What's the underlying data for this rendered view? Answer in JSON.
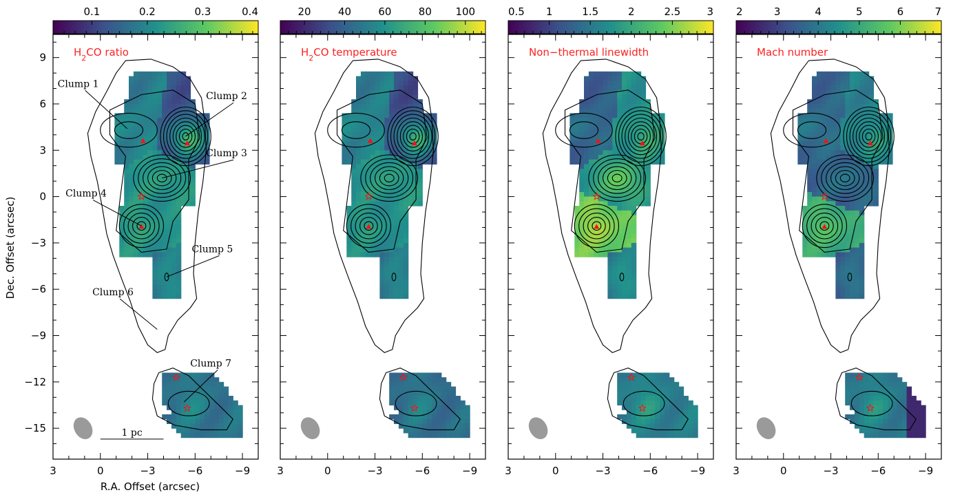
{
  "chart_data": {
    "type": "heatmap",
    "xlabel": "R.A. Offset (arcsec)",
    "ylabel": "Dec. Offset (arcsec)",
    "xlim": [
      3,
      -10
    ],
    "ylim": [
      -17,
      10.5
    ],
    "xticks": [
      3,
      0,
      -3,
      -6,
      -9
    ],
    "xtick_labels": [
      "3",
      "0",
      "−3",
      "−6",
      "−9"
    ],
    "yticks": [
      9,
      6,
      3,
      0,
      -3,
      -6,
      -9,
      -12,
      -15
    ],
    "ytick_labels": [
      "9",
      "6",
      "3",
      "0",
      "−3",
      "−6",
      "−9",
      "−12",
      "−15"
    ],
    "colormap": [
      "#440154",
      "#3b528b",
      "#21918c",
      "#5ec962",
      "#fde725"
    ],
    "panels": [
      {
        "title_prefix": "H",
        "title_sub": "2",
        "title_suffix": "CO ratio",
        "colorbar_ticks": [
          "0.1",
          "0.2",
          "0.3",
          "0.4"
        ],
        "colorbar_positions": [
          0.1,
          0.2,
          0.3,
          0.4
        ],
        "colorbar_range": [
          0.03,
          0.4
        ],
        "color_bias": [
          0.42,
          0.26,
          0.5,
          0.5,
          0.4,
          0.38
        ],
        "show_clump_labels": true,
        "show_scale_bar": true
      },
      {
        "title_prefix": "H",
        "title_sub": "2",
        "title_suffix": "CO temperature",
        "colorbar_ticks": [
          "20",
          "40",
          "60",
          "80",
          "100"
        ],
        "colorbar_positions": [
          20,
          40,
          60,
          80,
          100
        ],
        "colorbar_range": [
          8,
          110
        ],
        "color_bias": [
          0.42,
          0.24,
          0.5,
          0.48,
          0.38,
          0.36
        ],
        "show_clump_labels": false,
        "show_scale_bar": false
      },
      {
        "title_prefix": "Non−thermal linewidth",
        "title_sub": "",
        "title_suffix": "",
        "colorbar_ticks": [
          "0.5",
          "1",
          "1.5",
          "2",
          "2.5",
          "3"
        ],
        "colorbar_positions": [
          0.5,
          1,
          1.5,
          2,
          2.5,
          3
        ],
        "colorbar_range": [
          0.5,
          3
        ],
        "color_bias": [
          0.3,
          0.5,
          0.5,
          0.75,
          0.4,
          0.42
        ],
        "show_clump_labels": false,
        "show_scale_bar": false
      },
      {
        "title_prefix": "Mach number",
        "title_sub": "",
        "title_suffix": "",
        "colorbar_ticks": [
          "2",
          "3",
          "4",
          "5",
          "6",
          "7"
        ],
        "colorbar_positions": [
          2,
          3,
          4,
          5,
          6,
          7
        ],
        "colorbar_range": [
          2,
          7
        ],
        "color_bias": [
          0.32,
          0.44,
          0.3,
          0.6,
          0.28,
          0.4
        ],
        "show_clump_labels": false,
        "show_scale_bar": false
      }
    ],
    "clumps": [
      {
        "name": "Clump 1",
        "ra": -1.5,
        "dec": 4.5,
        "label_ra": 1.4,
        "label_dec": 7.1,
        "line_ra": -1.7,
        "line_dec": 4.4
      },
      {
        "name": "Clump 2",
        "ra": -5.4,
        "dec": 3.9,
        "label_ra": -8.0,
        "label_dec": 6.3,
        "line_ra": -5.4,
        "line_dec": 3.9
      },
      {
        "name": "Clump 3",
        "ra": -3.9,
        "dec": 1.2,
        "label_ra": -8.0,
        "label_dec": 2.6,
        "line_ra": -3.9,
        "line_dec": 1.2
      },
      {
        "name": "Clump 4",
        "ra": -2.6,
        "dec": -1.9,
        "label_ra": 0.9,
        "label_dec": 0.0,
        "line_ra": -2.6,
        "line_dec": -1.9
      },
      {
        "name": "Clump 5",
        "ra": -4.2,
        "dec": -5.2,
        "label_ra": -7.1,
        "label_dec": -3.6,
        "line_ra": -4.2,
        "line_dec": -5.2
      },
      {
        "name": "Clump 6",
        "ra": -3.6,
        "dec": -8.4,
        "label_ra": -0.8,
        "label_dec": -6.4,
        "line_ra": -3.6,
        "line_dec": -8.6
      },
      {
        "name": "Clump 7",
        "ra": -5.3,
        "dec": -13.5,
        "label_ra": -7.0,
        "label_dec": -11.0,
        "line_ra": -5.3,
        "line_dec": -13.3
      }
    ],
    "triangles": [
      {
        "ra": -2.7,
        "dec": 3.6
      },
      {
        "ra": -5.5,
        "dec": 3.45
      },
      {
        "ra": -2.6,
        "dec": -1.95
      }
    ],
    "stars": [
      {
        "ra": -2.6,
        "dec": 0.0
      },
      {
        "ra": -4.8,
        "dec": -11.7
      },
      {
        "ra": -5.5,
        "dec": -13.7
      }
    ],
    "scale_bar": {
      "label": "1 pc",
      "ra_start": 0,
      "ra_end": -4,
      "dec": -15.7
    },
    "beam": {
      "ra": 1.1,
      "dec": -15.0,
      "width_arcsec": 1.1,
      "height_arcsec": 1.5,
      "angle_deg": -30
    }
  }
}
